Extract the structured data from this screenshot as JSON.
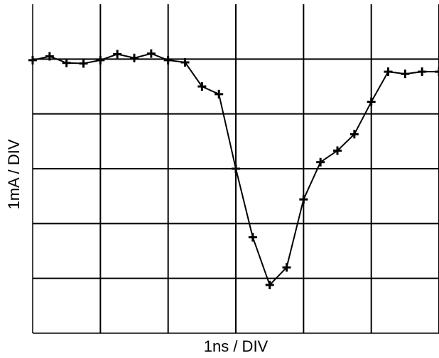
{
  "chart_data": {
    "type": "line",
    "title": "",
    "xlabel": "1ns / DIV",
    "ylabel": "1mA / DIV",
    "xlim": [
      0,
      6
    ],
    "ylim": [
      -6,
      0
    ],
    "grid": true,
    "marker": "plus",
    "series": [
      {
        "x": [
          0,
          0.25,
          0.5,
          0.75,
          1.0,
          1.25,
          1.5,
          1.75,
          2.0,
          2.25,
          2.5,
          2.75,
          3.0,
          3.25,
          3.5,
          3.75,
          4.0,
          4.25,
          4.5,
          4.75,
          5.0,
          5.25,
          5.5,
          5.75,
          6.0
        ],
        "values": [
          -1.02,
          -0.95,
          -1.07,
          -1.08,
          -1.02,
          -0.91,
          -0.98,
          -0.9,
          -1.02,
          -1.06,
          -1.5,
          -1.64,
          -3.0,
          -4.25,
          -5.12,
          -4.8,
          -3.56,
          -2.88,
          -2.67,
          -2.37,
          -1.78,
          -1.23,
          -1.27,
          -1.23,
          -1.23
        ]
      }
    ]
  }
}
